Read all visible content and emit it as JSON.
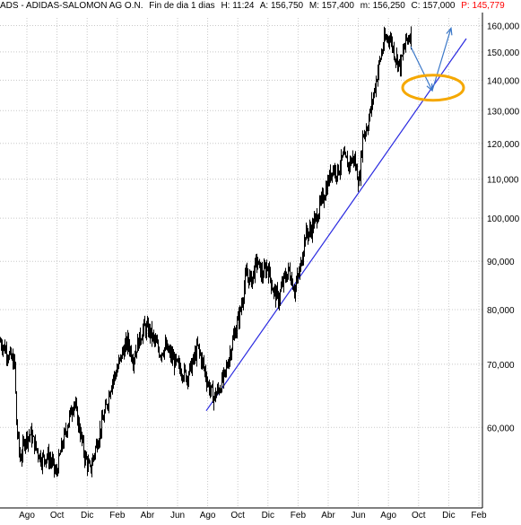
{
  "header": {
    "title": "ADS - ADIDAS-SALOMON AG O.N.",
    "period": "Fin de dia 1 dias",
    "high": "H: 11:24",
    "open": "A: 156,750",
    "max": "M: 157,400",
    "min": "m: 156,250",
    "close": "C: 157,000",
    "extra": "P: 145,779",
    "extra_color": "#ff0000"
  },
  "chart_data": {
    "type": "candlestick",
    "scale": "log",
    "ylim": [
      50000,
      162000
    ],
    "y_ticks": [
      60000,
      70000,
      80000,
      90000,
      100000,
      110000,
      120000,
      130000,
      140000,
      150000,
      160000
    ],
    "y_tick_labels": [
      "60,000",
      "70,000",
      "80,000",
      "90,000",
      "100,000",
      "110,000",
      "120,000",
      "130,000",
      "140,000",
      "150,000",
      "160,000"
    ],
    "x_labels": [
      "Ago",
      "Oct",
      "Dic",
      "Feb",
      "Abr",
      "Jun",
      "Ago",
      "Oct",
      "Dic",
      "Feb",
      "Abr",
      "Jun",
      "Ago",
      "Oct",
      "Dic",
      "Feb"
    ],
    "grid": true,
    "price_path": [
      [
        0,
        74000
      ],
      [
        8,
        72000
      ],
      [
        16,
        70000
      ],
      [
        18,
        60500
      ],
      [
        22,
        55500
      ],
      [
        28,
        58500
      ],
      [
        34,
        59000
      ],
      [
        40,
        57000
      ],
      [
        46,
        55500
      ],
      [
        52,
        56000
      ],
      [
        58,
        55000
      ],
      [
        62,
        53500
      ],
      [
        68,
        57000
      ],
      [
        76,
        61000
      ],
      [
        82,
        64000
      ],
      [
        88,
        60000
      ],
      [
        94,
        56000
      ],
      [
        100,
        54000
      ],
      [
        106,
        57000
      ],
      [
        112,
        60000
      ],
      [
        118,
        63000
      ],
      [
        124,
        67000
      ],
      [
        130,
        69000
      ],
      [
        136,
        72000
      ],
      [
        142,
        74000
      ],
      [
        148,
        71000
      ],
      [
        154,
        74000
      ],
      [
        160,
        76500
      ],
      [
        166,
        76000
      ],
      [
        172,
        74000
      ],
      [
        178,
        72000
      ],
      [
        184,
        73000
      ],
      [
        190,
        71500
      ],
      [
        196,
        70000
      ],
      [
        202,
        69000
      ],
      [
        208,
        68000
      ],
      [
        214,
        70000
      ],
      [
        220,
        73000
      ],
      [
        226,
        70000
      ],
      [
        232,
        66500
      ],
      [
        238,
        64500
      ],
      [
        244,
        66000
      ],
      [
        250,
        68000
      ],
      [
        256,
        72000
      ],
      [
        262,
        76000
      ],
      [
        268,
        80000
      ],
      [
        274,
        87000
      ],
      [
        280,
        86000
      ],
      [
        286,
        90000
      ],
      [
        292,
        87000
      ],
      [
        298,
        89000
      ],
      [
        304,
        84000
      ],
      [
        310,
        82000
      ],
      [
        316,
        86000
      ],
      [
        322,
        88000
      ],
      [
        328,
        84000
      ],
      [
        334,
        88000
      ],
      [
        340,
        96000
      ],
      [
        346,
        97000
      ],
      [
        352,
        100000
      ],
      [
        358,
        104000
      ],
      [
        364,
        108000
      ],
      [
        370,
        113000
      ],
      [
        376,
        112000
      ],
      [
        382,
        116000
      ],
      [
        388,
        114000
      ],
      [
        394,
        116000
      ],
      [
        400,
        109000
      ],
      [
        404,
        122000
      ],
      [
        410,
        126000
      ],
      [
        416,
        135000
      ],
      [
        422,
        145000
      ],
      [
        428,
        154000
      ],
      [
        434,
        156000
      ],
      [
        440,
        149000
      ],
      [
        446,
        145000
      ],
      [
        452,
        154000
      ],
      [
        458,
        157000
      ]
    ],
    "trendline": {
      "from": [
        230,
        62500
      ],
      "to": [
        520,
        155000
      ],
      "color": "#2a2ae0"
    },
    "arrows": [
      {
        "from": [
          458,
          152000
        ],
        "to": [
          482,
          136500
        ],
        "color": "#3b78c8"
      },
      {
        "from": [
          482,
          136500
        ],
        "to": [
          503,
          159000
        ],
        "color": "#3b78c8"
      }
    ],
    "highlight": {
      "cx": 483,
      "cy_value": 137500,
      "color": "#f5a800"
    }
  }
}
